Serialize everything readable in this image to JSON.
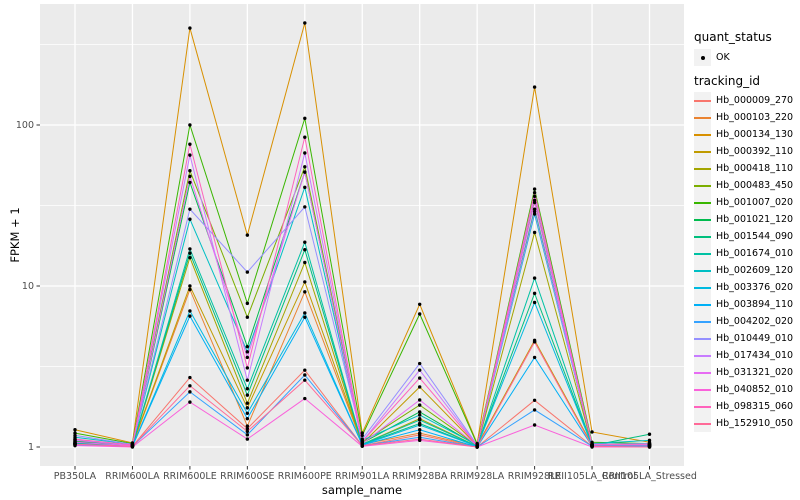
{
  "colors": {
    "panel_background": "#EBEBEB",
    "grid": "#FFFFFF",
    "tick": "#333333",
    "tick_label": "#4D4D4D",
    "text": "#000000",
    "legend_key_background": "#F2F2F2",
    "point": "#000000"
  },
  "axes": {
    "x_title": "sample_name",
    "y_title": "FPKM + 1",
    "y_tick_labels": [
      "1",
      "10",
      "100"
    ]
  },
  "legend": {
    "quant_status_title": "quant_status",
    "quant_status_items": [
      {
        "label": "OK",
        "marker": "point-icon",
        "color": "#000000"
      }
    ],
    "tracking_id_title": "tracking_id"
  },
  "chart_data": {
    "type": "line",
    "title": "",
    "xlabel": "sample_name",
    "ylabel": "FPKM + 1",
    "y_scale": "log10",
    "ylim": [
      1,
      430
    ],
    "y_major_ticks": [
      1,
      10,
      100
    ],
    "y_minor_gridlines": [
      3.162,
      31.623,
      316.228
    ],
    "grid": true,
    "legend_position": "right",
    "point_shape": "filled-circle",
    "point_color": "#000000",
    "categories": [
      "PB350LA",
      "RRIM600LA",
      "RRIM600LE",
      "RRIM600SE",
      "RRIM600PE",
      "RRIM901LA",
      "RRIM928BA",
      "RRIM928LA",
      "RRIM928LE",
      "RRII105LA_Control",
      "RRII105LA_Stressed"
    ],
    "series": [
      {
        "name": "Hb_000009_270",
        "color": "#F8766D",
        "values": [
          1.12,
          1.01,
          2.7,
          1.3,
          3.0,
          1.02,
          1.19,
          1.0,
          1.95,
          1.01,
          1.01
        ]
      },
      {
        "name": "Hb_000103_220",
        "color": "#EA8331",
        "values": [
          1.05,
          1.02,
          9.5,
          1.35,
          9.2,
          1.04,
          1.22,
          1.01,
          4.5,
          1.02,
          1.02
        ]
      },
      {
        "name": "Hb_000134_130",
        "color": "#D89000",
        "values": [
          1.28,
          1.06,
          400,
          20.7,
          430,
          1.22,
          7.7,
          1.05,
          172,
          1.24,
          1.07
        ]
      },
      {
        "name": "Hb_000392_110",
        "color": "#C09B00",
        "values": [
          1.06,
          1.03,
          10,
          1.75,
          10.6,
          1.05,
          2.36,
          1.02,
          4.6,
          1.03,
          1.03
        ]
      },
      {
        "name": "Hb_000418_110",
        "color": "#A3A500",
        "values": [
          1.05,
          1.02,
          15,
          1.87,
          14,
          1.04,
          1.5,
          1.01,
          21.5,
          1.02,
          1.02
        ]
      },
      {
        "name": "Hb_000483_450",
        "color": "#7CAE00",
        "values": [
          1.09,
          1.03,
          52,
          6.4,
          55,
          1.07,
          1.82,
          1.02,
          34,
          1.04,
          1.04
        ]
      },
      {
        "name": "Hb_001007_020",
        "color": "#39B600",
        "values": [
          1.22,
          1.05,
          100,
          7.8,
          110,
          1.18,
          6.7,
          1.04,
          40,
          1.07,
          1.05
        ]
      },
      {
        "name": "Hb_001021_120",
        "color": "#00BB4E",
        "values": [
          1.08,
          1.02,
          44,
          4.2,
          51,
          1.06,
          1.65,
          1.02,
          30,
          1.03,
          1.04
        ]
      },
      {
        "name": "Hb_001544_090",
        "color": "#00BF7D",
        "values": [
          1.05,
          1.02,
          16,
          2.1,
          16.8,
          1.04,
          1.4,
          1.01,
          9.0,
          1.02,
          1.2
        ]
      },
      {
        "name": "Hb_001674_010",
        "color": "#00C1A3",
        "values": [
          1.06,
          1.02,
          17,
          2.3,
          18.7,
          1.04,
          1.47,
          1.01,
          11.2,
          1.02,
          1.03
        ]
      },
      {
        "name": "Hb_002609_120",
        "color": "#00BFC4",
        "values": [
          1.15,
          1.04,
          26,
          3.9,
          41,
          1.1,
          1.58,
          1.03,
          28,
          1.05,
          1.1
        ]
      },
      {
        "name": "Hb_003376_020",
        "color": "#00BAE0",
        "values": [
          1.04,
          1.01,
          7,
          1.62,
          6.8,
          1.03,
          1.37,
          1.01,
          7.9,
          1.02,
          1.02
        ]
      },
      {
        "name": "Hb_003894_110",
        "color": "#00B0F6",
        "values": [
          1.04,
          1.01,
          6.5,
          1.5,
          6.4,
          1.03,
          1.28,
          1.0,
          3.6,
          1.01,
          1.01
        ]
      },
      {
        "name": "Hb_004202_020",
        "color": "#35A2FF",
        "values": [
          1.03,
          1.01,
          2.2,
          1.19,
          2.8,
          1.02,
          1.15,
          1.0,
          1.7,
          1.01,
          1.01
        ]
      },
      {
        "name": "Hb_010449_010",
        "color": "#9590FF",
        "values": [
          1.18,
          1.04,
          30,
          12.2,
          31,
          1.12,
          3.3,
          1.03,
          29,
          1.04,
          1.05
        ]
      },
      {
        "name": "Hb_017434_010",
        "color": "#C77CFF",
        "values": [
          1.1,
          1.03,
          65,
          2.6,
          67,
          1.08,
          3.0,
          1.02,
          36,
          1.04,
          1.04
        ]
      },
      {
        "name": "Hb_031321_020",
        "color": "#E76BF3",
        "values": [
          1.07,
          1.02,
          48,
          3.6,
          51,
          1.05,
          1.96,
          1.02,
          33,
          1.03,
          1.03
        ]
      },
      {
        "name": "Hb_040852_010",
        "color": "#FA62DB",
        "values": [
          1.02,
          1.0,
          1.9,
          1.12,
          2.0,
          1.01,
          1.1,
          1.0,
          1.37,
          1.0,
          1.0
        ]
      },
      {
        "name": "Hb_098315_060",
        "color": "#FF62BC",
        "values": [
          1.12,
          1.03,
          76,
          3.1,
          84,
          1.08,
          2.68,
          1.02,
          38,
          1.03,
          1.03
        ]
      },
      {
        "name": "Hb_152910_050",
        "color": "#FF6A98",
        "values": [
          1.04,
          1.01,
          2.4,
          1.25,
          2.6,
          1.02,
          1.12,
          1.0,
          4.5,
          1.01,
          1.0
        ]
      }
    ]
  }
}
